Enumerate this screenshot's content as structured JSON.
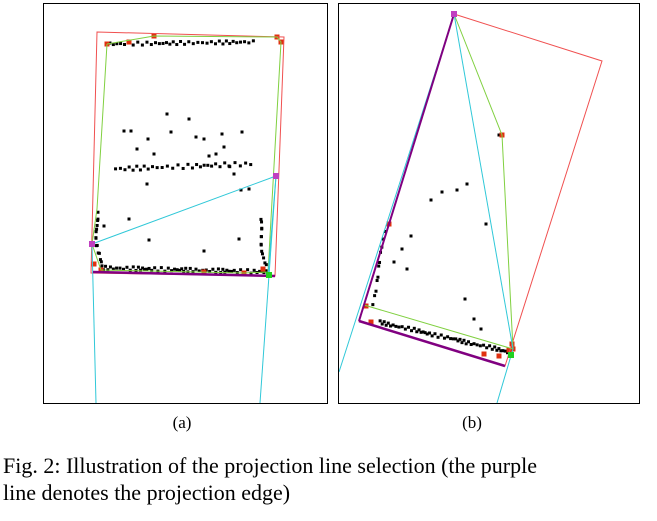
{
  "figure": {
    "subfigure_a_label": "(a)",
    "subfigure_b_label": "(b)",
    "caption_line1": "Fig. 2: Illustration of the projection line selection (the purple",
    "caption_line2": "line denotes the projection edge)"
  },
  "colors": {
    "bounding_rect": "#f05050",
    "hull_edge": "#80d040",
    "cyan_line": "#30c8d8",
    "projection_edge": "#800080",
    "hull_vertex": "#e03010",
    "projection_vertex": "#c040c0",
    "green_vertex": "#20d020",
    "point": "#000000"
  }
}
